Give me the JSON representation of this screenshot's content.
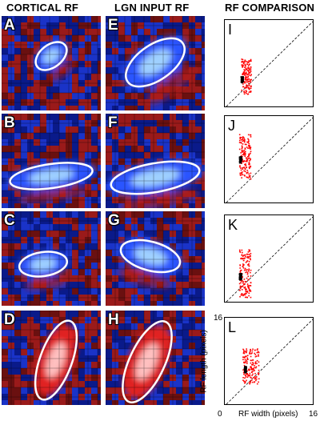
{
  "headers": [
    "CORTICAL RF",
    "LGN INPUT RF",
    "RF COMPARISON"
  ],
  "rows": [
    {
      "cortical": "A",
      "lgn": "E",
      "comparison": "I"
    },
    {
      "cortical": "B",
      "lgn": "F",
      "comparison": "J"
    },
    {
      "cortical": "C",
      "lgn": "G",
      "comparison": "K"
    },
    {
      "cortical": "D",
      "lgn": "H",
      "comparison": "L"
    }
  ],
  "axes": {
    "x_label": "RF width (pixels)",
    "y_label": "RF length (pixels)",
    "x_min": "0",
    "x_max": "16",
    "y_max": "16"
  },
  "colors": {
    "on": "#ff4040",
    "off": "#3060ff",
    "lgn_points": "#ff0000",
    "cortical_points": "#000000",
    "ellipse": "#ffffff"
  }
}
